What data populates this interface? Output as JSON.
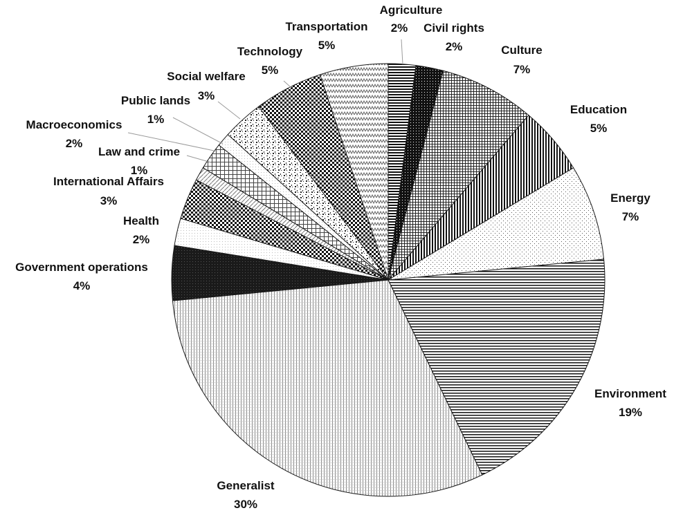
{
  "chart_data": {
    "type": "pie",
    "title": "",
    "slices": [
      {
        "name": "Agriculture",
        "value": 2,
        "label": "2%",
        "pattern": "hlines-dense"
      },
      {
        "name": "Civil rights",
        "value": 2,
        "label": "2%",
        "pattern": "dark-dots"
      },
      {
        "name": "Culture",
        "value": 7,
        "label": "7%",
        "pattern": "grid-fine"
      },
      {
        "name": "Education",
        "value": 5,
        "label": "5%",
        "pattern": "vlines-dense"
      },
      {
        "name": "Energy",
        "value": 7,
        "label": "7%",
        "pattern": "sparse-dots"
      },
      {
        "name": "Environment",
        "value": 19,
        "label": "19%",
        "pattern": "hlines"
      },
      {
        "name": "Generalist",
        "value": 30,
        "label": "30%",
        "pattern": "vlines-light"
      },
      {
        "name": "Government operations",
        "value": 4,
        "label": "4%",
        "pattern": "solid-dark"
      },
      {
        "name": "Health",
        "value": 2,
        "label": "2%",
        "pattern": "light-dots"
      },
      {
        "name": "International Affairs",
        "value": 3,
        "label": "3%",
        "pattern": "checker"
      },
      {
        "name": "Law and crime",
        "value": 1,
        "label": "1%",
        "pattern": "diag-light"
      },
      {
        "name": "Macroeconomics",
        "value": 2,
        "label": "2%",
        "pattern": "grid-coarse"
      },
      {
        "name": "Public lands",
        "value": 1,
        "label": "1%",
        "pattern": "light-dots"
      },
      {
        "name": "Social welfare",
        "value": 3,
        "label": "3%",
        "pattern": "confetti"
      },
      {
        "name": "Technology",
        "value": 5,
        "label": "5%",
        "pattern": "checker"
      },
      {
        "name": "Transportation",
        "value": 5,
        "label": "5%",
        "pattern": "zigzag"
      }
    ],
    "legend": "none"
  }
}
